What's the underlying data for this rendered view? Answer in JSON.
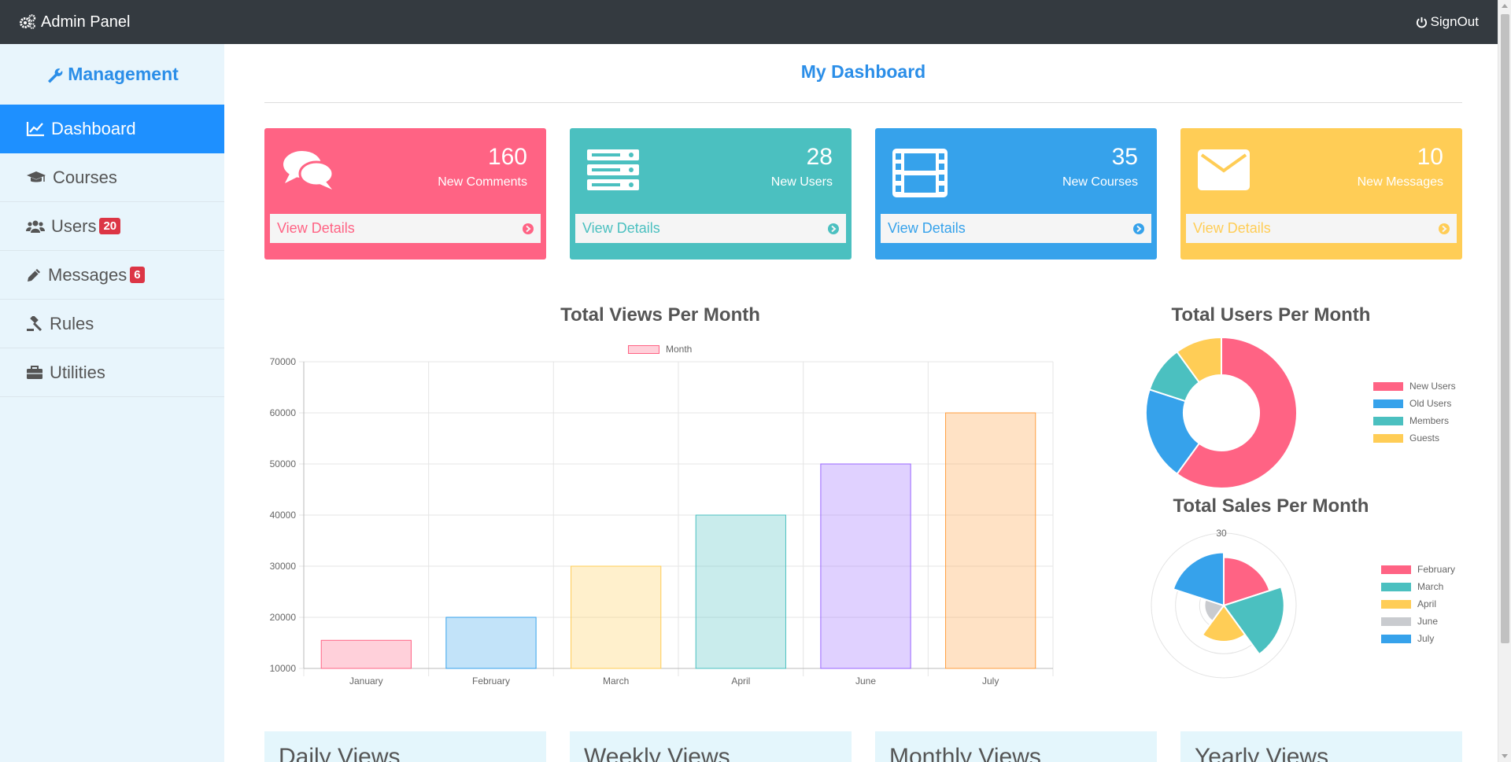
{
  "header": {
    "brand": "Admin Panel",
    "signout": "SignOut"
  },
  "sidebar": {
    "title": "Management",
    "items": [
      {
        "label": "Dashboard",
        "icon": "line-chart-icon",
        "active": true
      },
      {
        "label": "Courses",
        "icon": "graduation-cap-icon"
      },
      {
        "label": "Users",
        "icon": "users-icon",
        "badge": "20"
      },
      {
        "label": "Messages",
        "icon": "pencil-icon",
        "badge": "6"
      },
      {
        "label": "Rules",
        "icon": "gavel-icon"
      },
      {
        "label": "Utilities",
        "icon": "briefcase-icon"
      }
    ]
  },
  "main": {
    "title": "My Dashboard"
  },
  "cards": [
    {
      "count": "160",
      "label": "New Comments",
      "details": "View Details",
      "color": "#ff6384",
      "icon": "comments-icon"
    },
    {
      "count": "28",
      "label": "New Users",
      "details": "View Details",
      "color": "#4bc0c0",
      "icon": "server-icon"
    },
    {
      "count": "35",
      "label": "New Courses",
      "details": "View Details",
      "color": "#36a2eb",
      "icon": "film-icon"
    },
    {
      "count": "10",
      "label": "New Messages",
      "details": "View Details",
      "color": "#ffcd56",
      "icon": "envelope-icon"
    }
  ],
  "chart_data": [
    {
      "type": "bar",
      "title": "Total Views Per Month",
      "legend": [
        "Month"
      ],
      "categories": [
        "January",
        "February",
        "March",
        "April",
        "June",
        "July"
      ],
      "values": [
        15500,
        20000,
        30000,
        40000,
        50000,
        60000
      ],
      "ylim": [
        10000,
        70000
      ],
      "yticks": [
        "70000",
        "60000",
        "50000",
        "40000",
        "30000",
        "20000",
        "10000"
      ],
      "colors": [
        "#ff6384",
        "#36a2eb",
        "#ffcd56",
        "#4bc0c0",
        "#9966ff",
        "#ff9f40"
      ],
      "grid": true
    },
    {
      "type": "pie",
      "title": "Total Users Per Month",
      "categories": [
        "New Users",
        "Old Users",
        "Members",
        "Guests"
      ],
      "values": [
        60,
        20,
        10,
        10
      ],
      "colors": [
        "#ff6384",
        "#36a2eb",
        "#4bc0c0",
        "#ffcd56"
      ],
      "legend_position": "right"
    },
    {
      "type": "polar-area",
      "title": "Total Sales Per Month",
      "categories": [
        "February",
        "March",
        "April",
        "June",
        "July"
      ],
      "values": [
        20,
        25,
        15,
        8,
        22
      ],
      "colors": [
        "#ff6384",
        "#4bc0c0",
        "#ffcd56",
        "#c9cbcf",
        "#36a2eb"
      ],
      "tick_label": "30",
      "rmax": 30,
      "legend_position": "right"
    }
  ],
  "bottom_cards": [
    "Daily Views",
    "Weekly Views",
    "Monthly Views",
    "Yearly Views"
  ]
}
